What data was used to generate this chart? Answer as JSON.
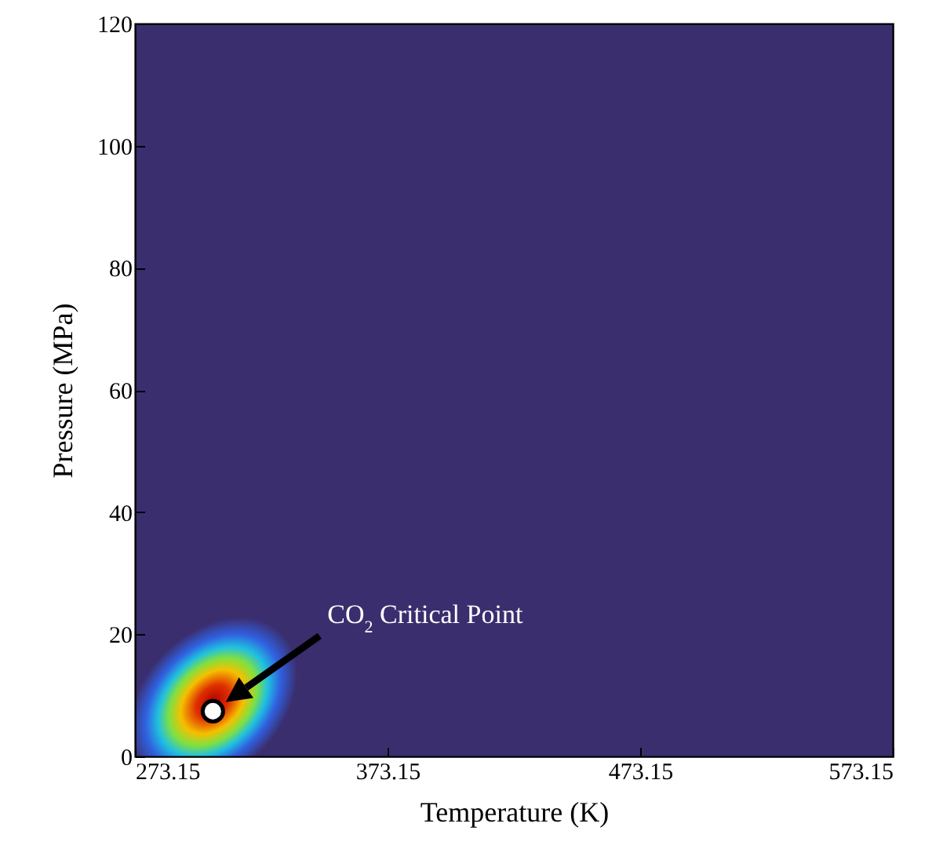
{
  "chart_data": {
    "type": "scatter",
    "xlabel": "Temperature (K)",
    "ylabel": "Pressure (MPa)",
    "x": [
      304
    ],
    "series": [
      {
        "color": "#ffffff",
        "values": [
          7.4
        ]
      }
    ],
    "marker": "circle",
    "grid": false,
    "xlim": [
      273.15,
      573.15
    ],
    "xticks": [
      273.15,
      373.15,
      473.15,
      573.15
    ],
    "ylim": [
      0,
      120
    ],
    "yticks": [
      0,
      20,
      40,
      60,
      80,
      100,
      120
    ],
    "annotations": [
      "CO$_{2}$ Critical Point"
    ]
  }
}
